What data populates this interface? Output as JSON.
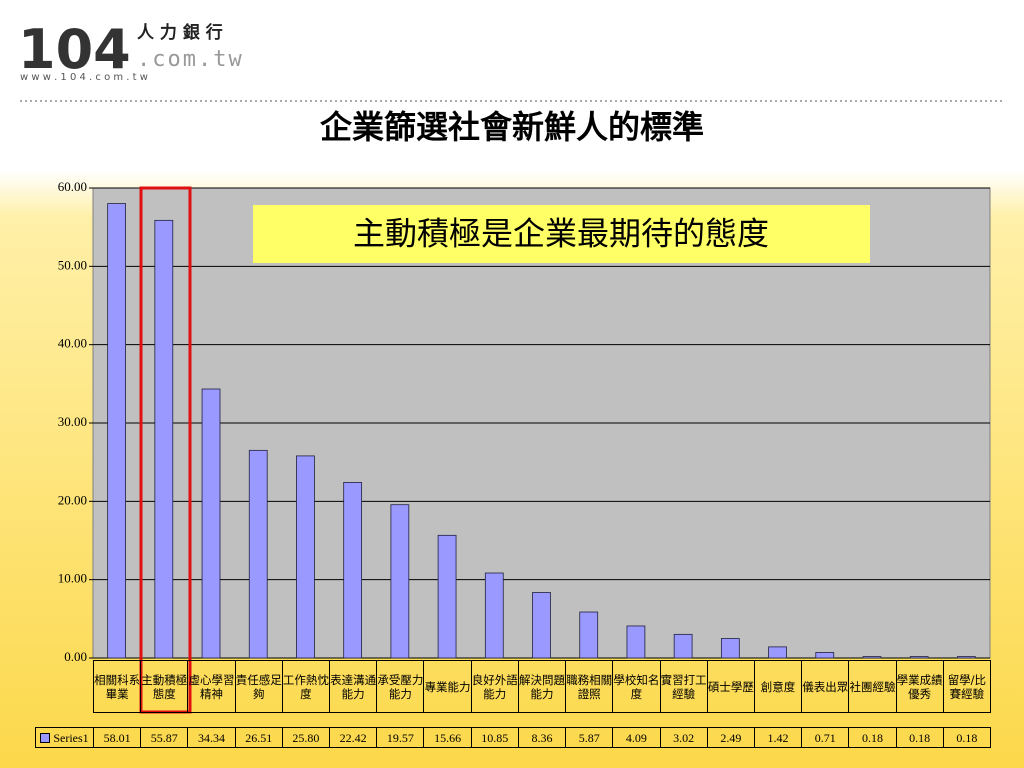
{
  "logo": {
    "number": "104",
    "name": "人 力 銀 行",
    "domain": ".com.tw",
    "url": "w w w . 1 0 4 . c o m . t w"
  },
  "chart_data": {
    "type": "bar",
    "title": "企業篩選社會新鮮人的標準",
    "annotation": "主動積極是企業最期待的態度",
    "categories": [
      "相關科系畢業",
      "主動積極態度",
      "虛心學習精神",
      "責任感足夠",
      "工作熱忱度",
      "表達溝通能力",
      "承受壓力能力",
      "專業能力",
      "良好外語能力",
      "解決問題能力",
      "職務相關證照",
      "學校知名度",
      "實習打工經驗",
      "碩士學歷",
      "創意度",
      "儀表出眾",
      "社團經驗",
      "學業成績優秀",
      "留學/比賽經驗"
    ],
    "series": [
      {
        "name": "Series1",
        "color": "#9999ff",
        "values": [
          58.01,
          55.87,
          34.34,
          26.51,
          25.8,
          22.42,
          19.57,
          15.66,
          10.85,
          8.36,
          5.87,
          4.09,
          3.02,
          2.49,
          1.42,
          0.71,
          0.18,
          0.18,
          0.18
        ],
        "value_labels": [
          "58.01",
          "55.87",
          "34.34",
          "26.51",
          "25.80",
          "22.42",
          "19.57",
          "15.66",
          "10.85",
          "8.36",
          "5.87",
          "4.09",
          "3.02",
          "2.49",
          "1.42",
          "0.71",
          "0.18",
          "0.18",
          "0.18"
        ]
      }
    ],
    "ylim": [
      0,
      60
    ],
    "yticks": [
      {
        "value": 0,
        "label": "0.00"
      },
      {
        "value": 10,
        "label": "10.00"
      },
      {
        "value": 20,
        "label": "20.00"
      },
      {
        "value": 30,
        "label": "30.00"
      },
      {
        "value": 40,
        "label": "40.00"
      },
      {
        "value": 50,
        "label": "50.00"
      },
      {
        "value": 60,
        "label": "60.00"
      }
    ],
    "grid": true
  }
}
